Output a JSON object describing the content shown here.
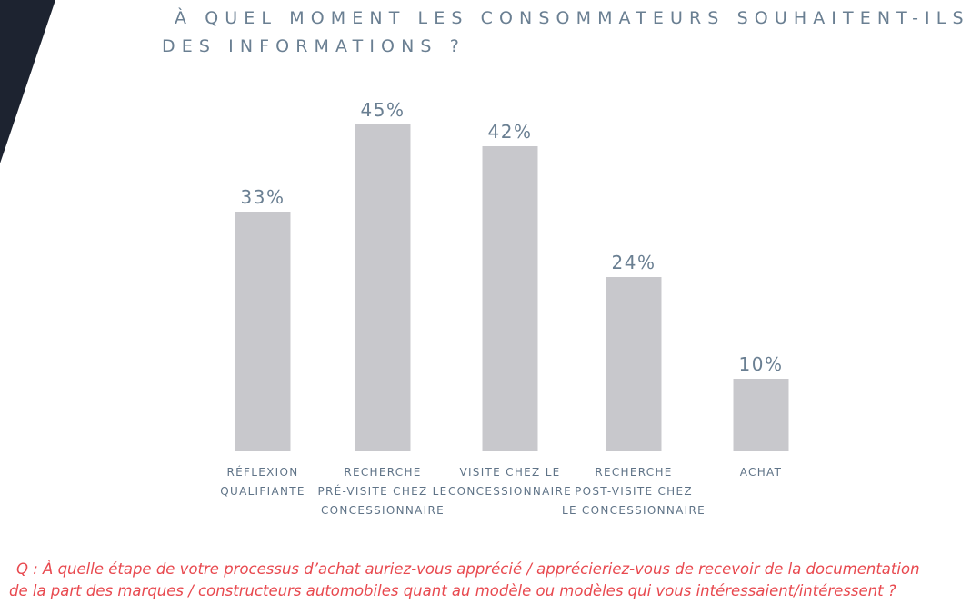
{
  "title": {
    "line1": "À QUEL MOMENT LES CONSOMMATEURS SOUHAITENT-ILS",
    "line2": "DES INFORMATIONS ?"
  },
  "chart_data": {
    "type": "bar",
    "categories": [
      [
        "RÉFLEXION",
        "QUALIFIANTE"
      ],
      [
        "RECHERCHE",
        "PRÉ-VISITE CHEZ LE",
        "CONCESSIONNAIRE"
      ],
      [
        "VISITE CHEZ LE",
        "CONCESSIONNAIRE"
      ],
      [
        "RECHERCHE",
        "POST-VISITE CHEZ",
        "LE CONCESSIONNAIRE"
      ],
      [
        "ACHAT"
      ]
    ],
    "values": [
      33,
      45,
      42,
      24,
      10
    ],
    "data_labels": [
      "33%",
      "45%",
      "42%",
      "24%",
      "10%"
    ],
    "unit": "%",
    "grid": false,
    "legend": "none",
    "colors": {
      "bar": "#c8c8cc",
      "value_label": "#6a7f92",
      "category_label": "#5f7387"
    }
  },
  "footnote": {
    "line1": "Q : À quelle étape de votre processus d’achat auriez-vous apprécié / apprécieriez-vous de recevoir de la documentation",
    "line2": "de la part des marques / constructeurs automobiles quant au modèle ou modèles qui vous intéressaient/intéressent ?"
  },
  "colors": {
    "title": "#6a7f92",
    "footnote": "#e8494f",
    "corner_shape": "#1d2330"
  }
}
